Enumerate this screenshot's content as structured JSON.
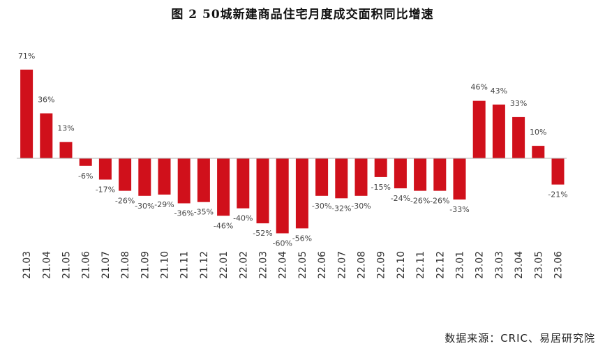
{
  "colors": {
    "bar": "#d0101b",
    "axis": "#b0b0b0",
    "label": "#444444"
  },
  "source": "数据来源：CRIC、易居研究院",
  "chart_data": {
    "type": "bar",
    "title": "图 2   50城新建商品住宅月度成交面积同比增速",
    "xlabel": "",
    "ylabel": "",
    "ylim": [
      -75,
      80
    ],
    "grid": false,
    "legend": "none",
    "categories": [
      "21.03",
      "21.04",
      "21.05",
      "21.06",
      "21.07",
      "21.08",
      "21.09",
      "21.10",
      "21.11",
      "21.12",
      "22.01",
      "22.02",
      "22.03",
      "22.04",
      "22.05",
      "22.06",
      "22.07",
      "22.08",
      "22.09",
      "22.10",
      "22.11",
      "22.12",
      "23.01",
      "23.02",
      "23.03",
      "23.04",
      "23.05",
      "23.06"
    ],
    "values": [
      71,
      36,
      13,
      -6,
      -17,
      -26,
      -30,
      -29,
      -36,
      -35,
      -46,
      -40,
      -52,
      -60,
      -56,
      -30,
      -32,
      -30,
      -15,
      -24,
      -26,
      -26,
      -33,
      46,
      43,
      33,
      10,
      -21
    ],
    "value_labels": [
      "71%",
      "36%",
      "13%",
      "-6%",
      "-17%",
      "-26%",
      "-30%",
      "-29%",
      "-36%",
      "-35%",
      "-46%",
      "-40%",
      "-52%",
      "-60%",
      "-56%",
      "-30%",
      "-32%",
      "-30%",
      "-15%",
      "-24%",
      "-26%",
      "-26%",
      "-33%",
      "46%",
      "43%",
      "33%",
      "10%",
      "-21%"
    ]
  }
}
